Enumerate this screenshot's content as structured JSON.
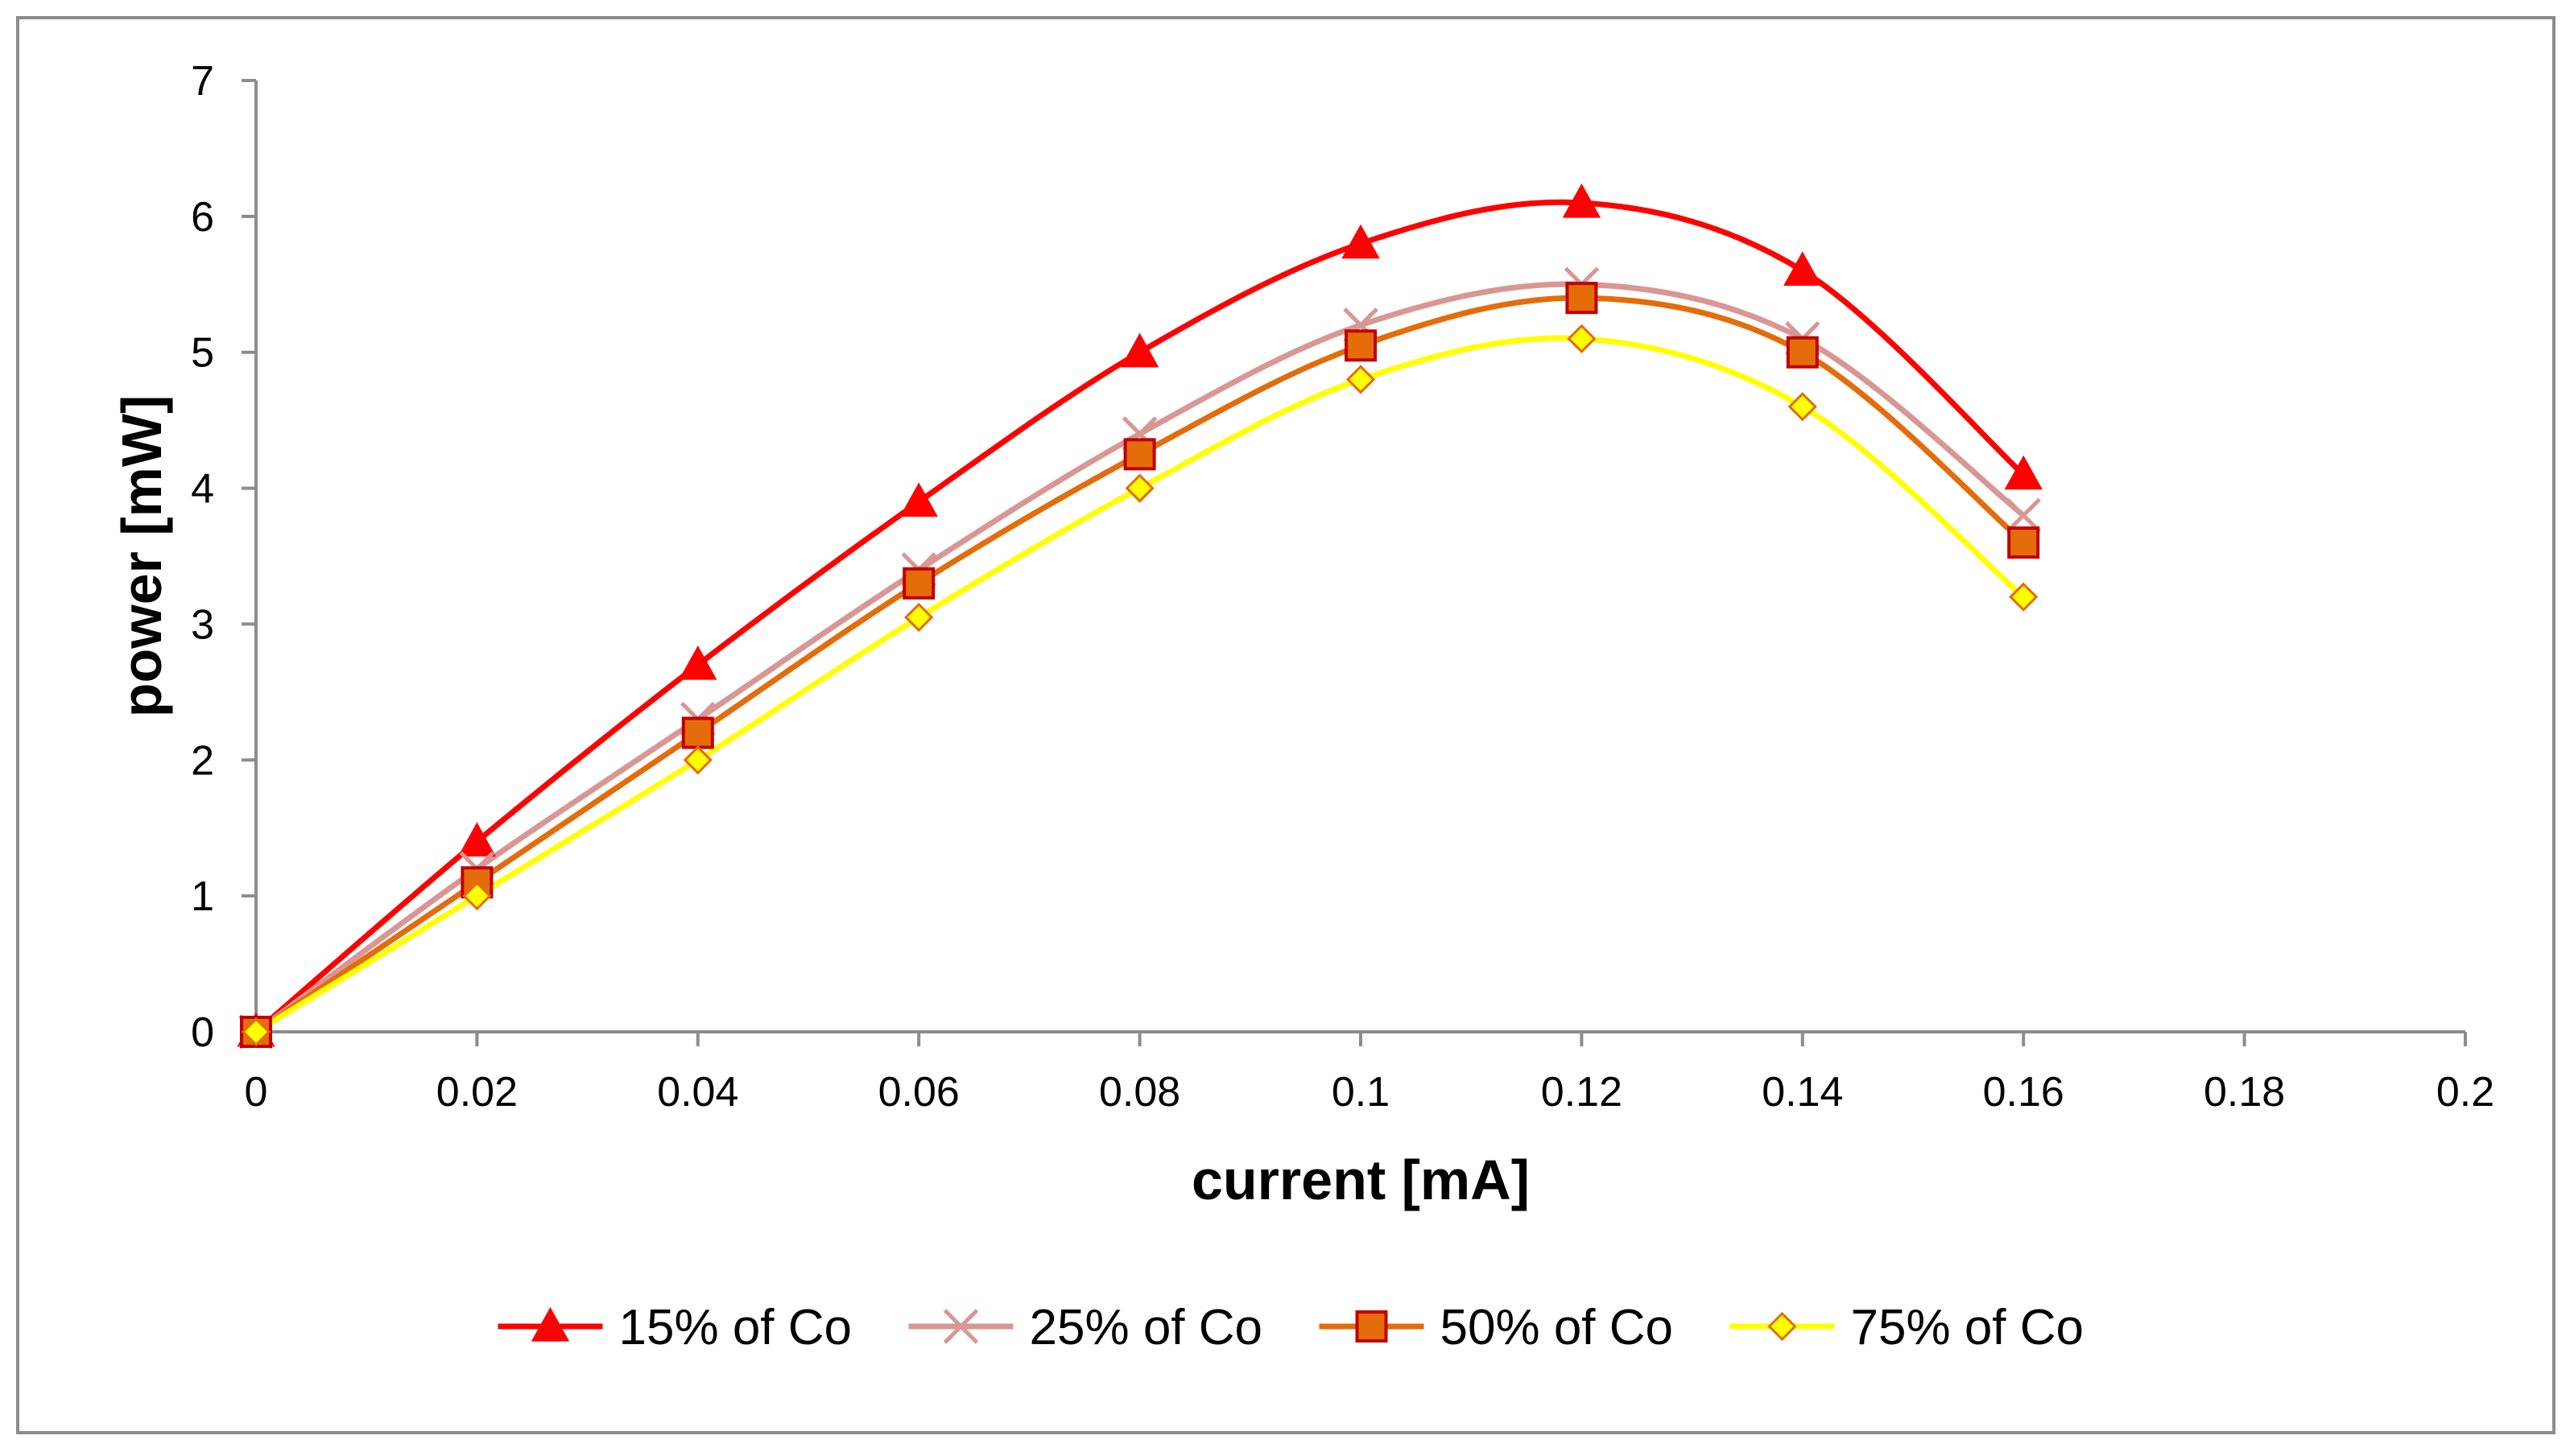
{
  "chart_data": {
    "type": "line",
    "title": "",
    "xlabel": "current [mA]",
    "ylabel": "power [mW]",
    "xlim": [
      0,
      0.2
    ],
    "ylim": [
      0,
      7
    ],
    "x_ticks": [
      0,
      0.02,
      0.04,
      0.06,
      0.08,
      0.1,
      0.12,
      0.14,
      0.16,
      0.18,
      0.2
    ],
    "x_tick_labels": [
      "0",
      "0.02",
      "0.04",
      "0.06",
      "0.08",
      "0.1",
      "0.12",
      "0.14",
      "0.16",
      "0.18",
      "0.2"
    ],
    "y_ticks": [
      0,
      1,
      2,
      3,
      4,
      5,
      6,
      7
    ],
    "y_tick_labels": [
      "0",
      "1",
      "2",
      "3",
      "4",
      "5",
      "6",
      "7"
    ],
    "grid": false,
    "smooth": true,
    "legend_position": "bottom",
    "x": [
      0,
      0.02,
      0.04,
      0.06,
      0.08,
      0.1,
      0.12,
      0.14,
      0.16
    ],
    "series": [
      {
        "name": "15% of Co",
        "color": "#ff0000",
        "marker": "triangle",
        "values": [
          0,
          1.4,
          2.7,
          3.9,
          5.0,
          5.8,
          6.1,
          5.6,
          4.1
        ]
      },
      {
        "name": "25% of Co",
        "color": "#d99694",
        "marker": "x",
        "values": [
          0,
          1.2,
          2.3,
          3.4,
          4.4,
          5.2,
          5.5,
          5.1,
          3.8
        ]
      },
      {
        "name": "50% of Co",
        "color": "#e46c0a",
        "marker": "square",
        "values": [
          0,
          1.1,
          2.2,
          3.3,
          4.25,
          5.05,
          5.4,
          5.0,
          3.6
        ]
      },
      {
        "name": "75% of Co",
        "color": "#ffff00",
        "marker": "diamond",
        "values": [
          0,
          1.0,
          2.0,
          3.05,
          4.0,
          4.8,
          5.1,
          4.6,
          3.2
        ]
      }
    ]
  }
}
